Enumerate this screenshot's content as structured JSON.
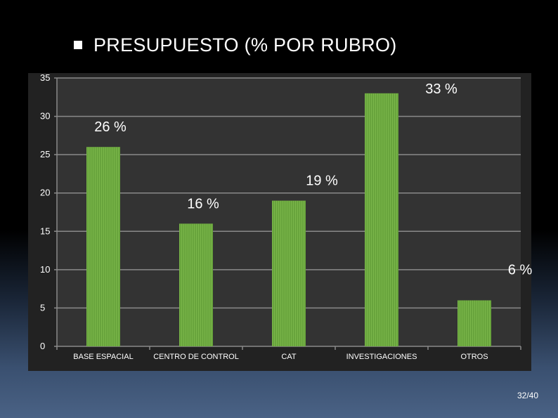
{
  "title": "PRESUPUESTO (% POR RUBRO)",
  "page_number": "32/40",
  "colors": {
    "bar": "#7ab64a",
    "bar_stripe": "#4f8a28",
    "plot_bg": "#333333",
    "frame_bg": "#222222",
    "grid": "#8a8a8a",
    "axis_text": "#ffffff"
  },
  "chart_data": {
    "type": "bar",
    "categories": [
      "BASE ESPACIAL",
      "CENTRO DE CONTROL",
      "CAT",
      "INVESTIGACIONES",
      "OTROS"
    ],
    "values": [
      26,
      16,
      19,
      33,
      6
    ],
    "data_labels": [
      "26 %",
      "16 %",
      "19 %",
      "33 %",
      "6 %"
    ],
    "yticks": [
      "0",
      "5",
      "10",
      "15",
      "20",
      "25",
      "30",
      "35"
    ],
    "ylim": [
      0,
      35
    ],
    "grid": true,
    "legend": "none"
  }
}
